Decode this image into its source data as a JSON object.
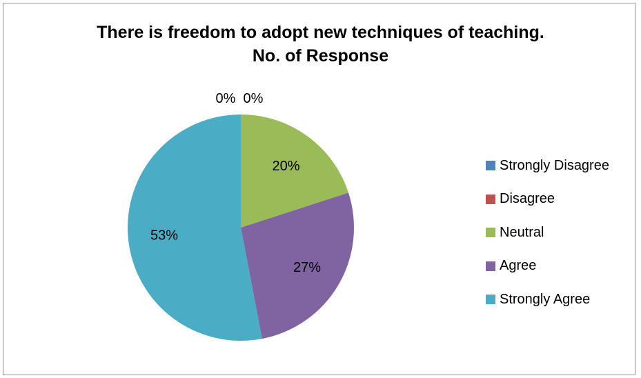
{
  "chart_data": {
    "type": "pie",
    "title_lines": [
      "There is freedom to adopt new techniques of teaching.",
      "No. of Response"
    ],
    "categories": [
      "Strongly Disagree",
      "Disagree",
      "Neutral",
      "Agree",
      "Strongly Agree"
    ],
    "values": [
      0,
      0,
      20,
      27,
      53
    ],
    "data_labels": [
      "0%",
      "0%",
      "20%",
      "27%",
      "53%"
    ],
    "colors": [
      "#4f81bd",
      "#c0504d",
      "#9bbb59",
      "#8064a2",
      "#4bacc6"
    ],
    "legend_position": "right"
  }
}
